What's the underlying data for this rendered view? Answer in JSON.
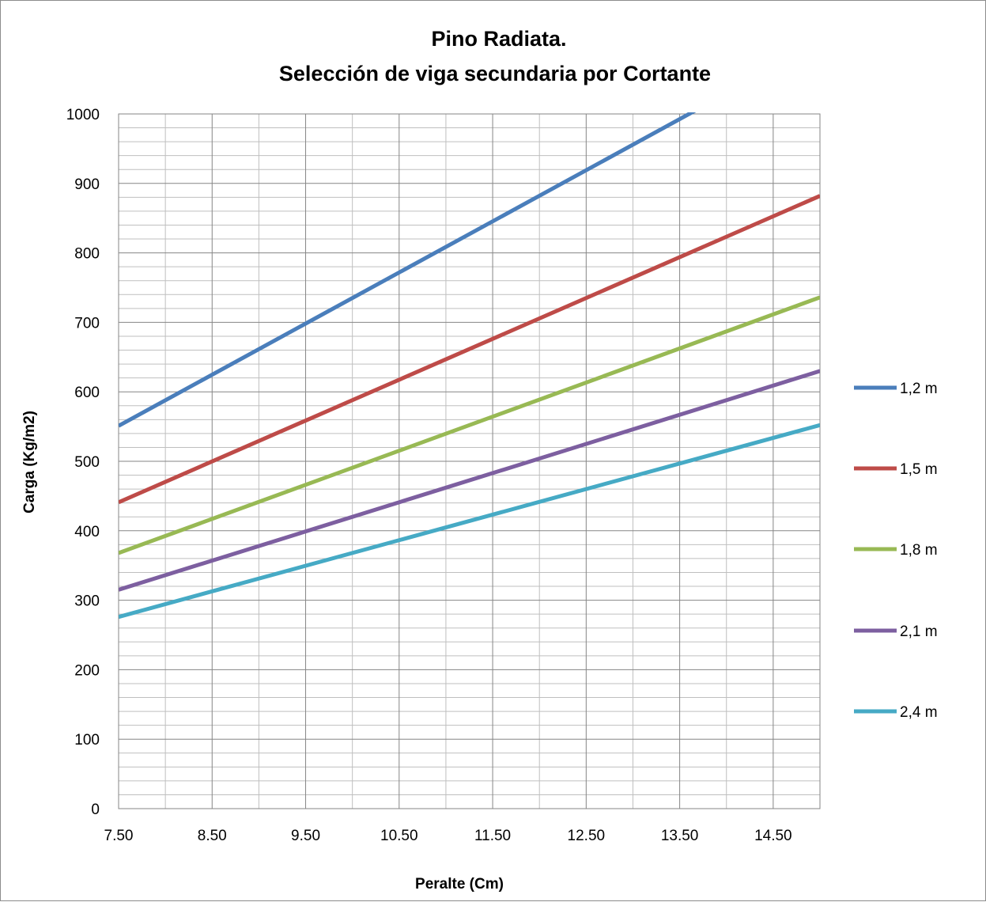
{
  "chart_data": {
    "type": "line",
    "title": [
      "Pino Radiata.",
      "Selección de viga secundaria por Cortante"
    ],
    "xlabel": "Peralte (Cm)",
    "ylabel": "Carga (Kg/m2)",
    "xlim": [
      7.5,
      15.0
    ],
    "ylim": [
      0,
      1000
    ],
    "x_ticks": [
      "7.50",
      "8.50",
      "9.50",
      "10.50",
      "11.50",
      "12.50",
      "13.50",
      "14.50"
    ],
    "y_ticks": [
      "0",
      "100",
      "200",
      "300",
      "400",
      "500",
      "600",
      "700",
      "800",
      "900",
      "1000"
    ],
    "grid": true,
    "legend_position": "right",
    "series": [
      {
        "name": "1,2 m",
        "color": "#4a7ebb",
        "x": [
          7.5,
          15.0
        ],
        "y": [
          551,
          1103
        ]
      },
      {
        "name": "1,5 m",
        "color": "#be4b48",
        "x": [
          7.5,
          15.0
        ],
        "y": [
          441,
          882
        ]
      },
      {
        "name": "1,8 m",
        "color": "#98b954",
        "x": [
          7.5,
          15.0
        ],
        "y": [
          368,
          736
        ]
      },
      {
        "name": "2,1 m",
        "color": "#7d5fa0",
        "x": [
          7.5,
          15.0
        ],
        "y": [
          315,
          630
        ]
      },
      {
        "name": "2,4 m",
        "color": "#46aac5",
        "x": [
          7.5,
          15.0
        ],
        "y": [
          276,
          552
        ]
      }
    ]
  }
}
